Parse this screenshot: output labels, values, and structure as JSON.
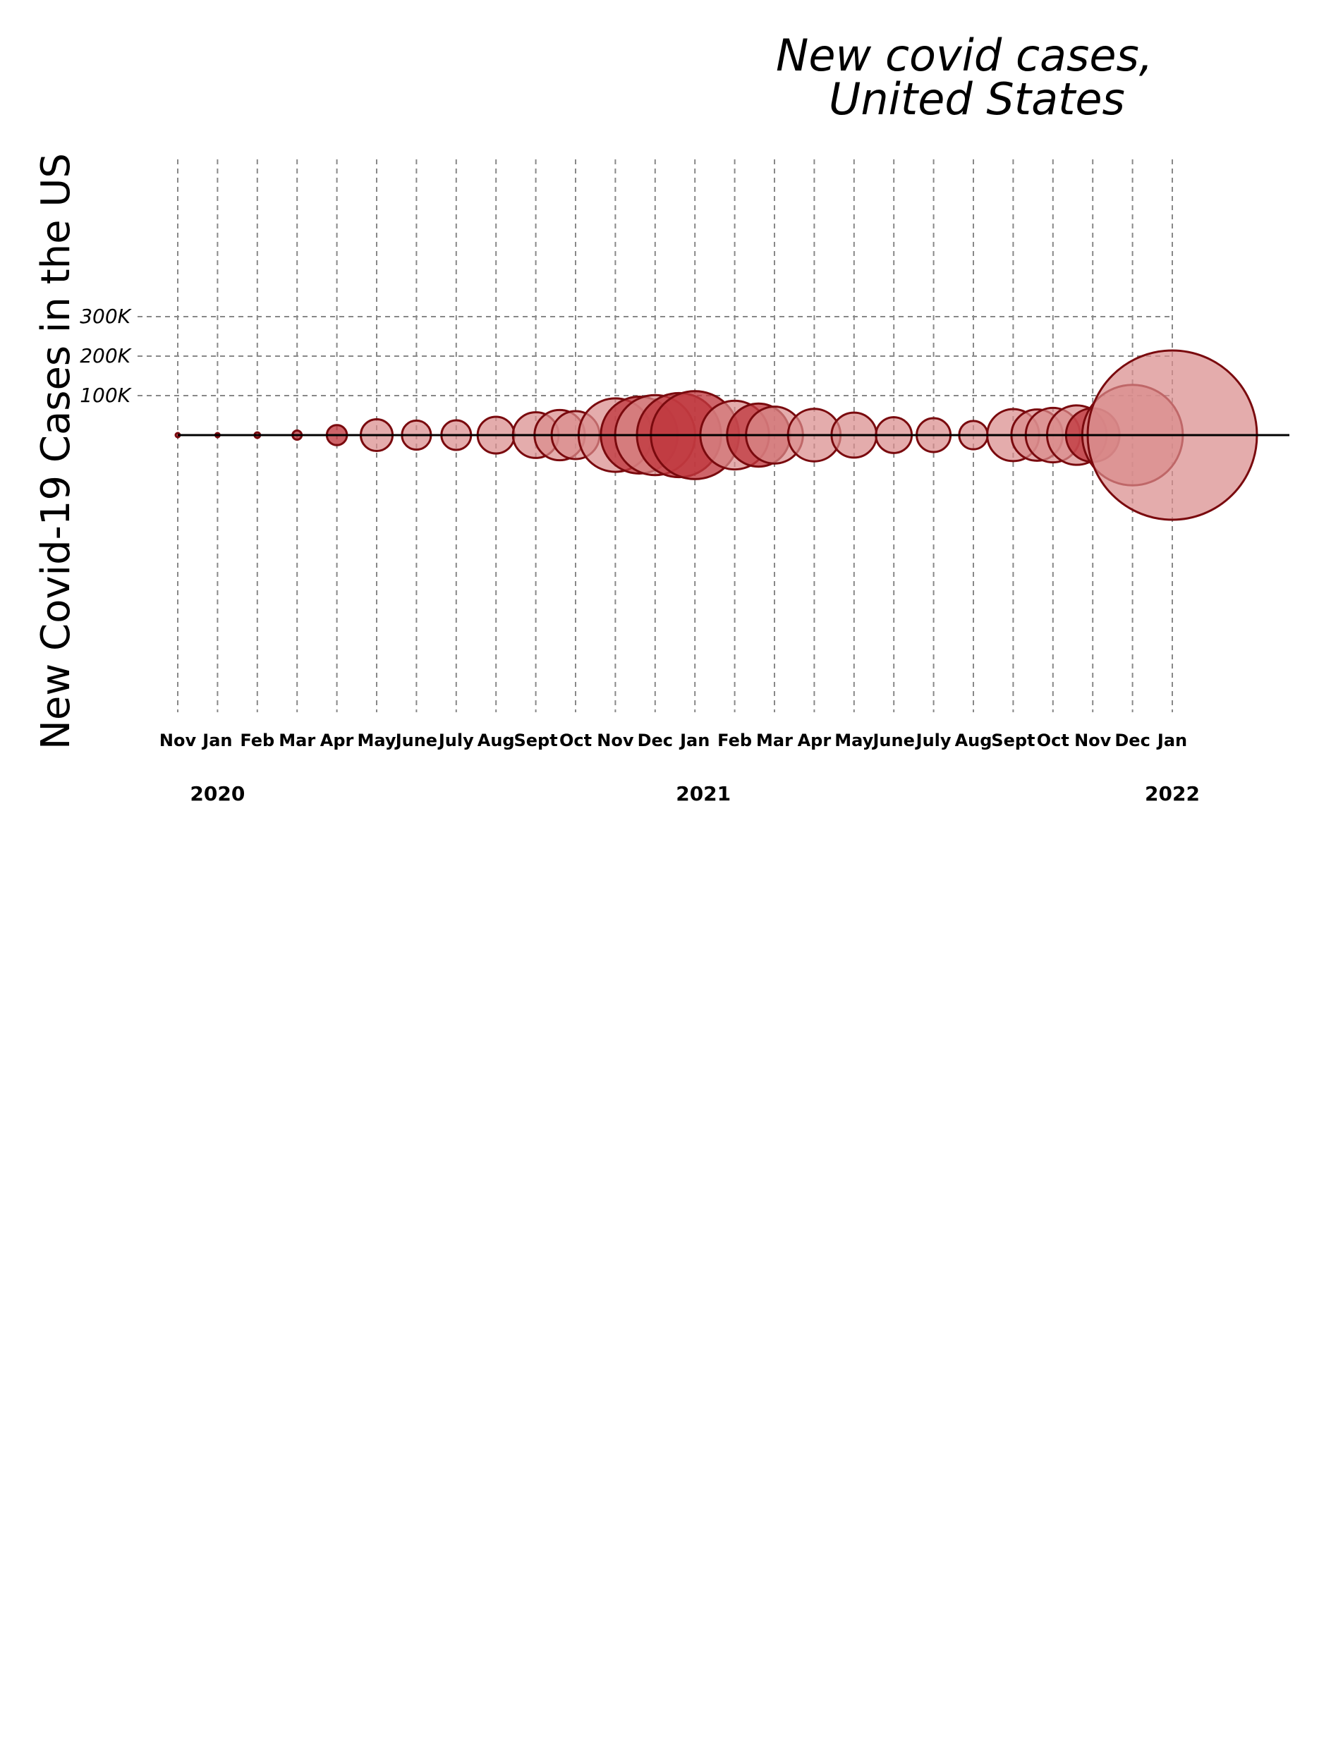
{
  "chart_data": {
    "type": "bubble",
    "title": [
      "New covid cases,",
      "United States"
    ],
    "ylabel": "New Covid-19 Cases in the US",
    "y_ticks": [
      "300K",
      "200K",
      "100K"
    ],
    "y_tick_values": [
      300000,
      200000,
      100000
    ],
    "categories": [
      "Nov",
      "Jan",
      "Feb",
      "Mar",
      "Apr",
      "May",
      "June",
      "July",
      "Aug",
      "Sept",
      "Oct",
      "Nov",
      "Dec",
      "Jan",
      "Feb",
      "Mar",
      "Apr",
      "May",
      "June",
      "July",
      "Aug",
      "Sept",
      "Oct",
      "Nov",
      "Dec",
      "Jan"
    ],
    "years": [
      {
        "label": "2020",
        "category_index": 1
      },
      {
        "label": "2021",
        "category_index": 13
      },
      {
        "label": "2022",
        "category_index": 25
      }
    ],
    "bubbles": [
      {
        "category_index": 0,
        "value": 500,
        "style": "dark"
      },
      {
        "category_index": 1,
        "value": 400,
        "style": "dark"
      },
      {
        "category_index": 2,
        "value": 900,
        "style": "dark"
      },
      {
        "category_index": 3,
        "value": 2500,
        "style": "dark"
      },
      {
        "category_index": 4,
        "value": 12000,
        "style": "dark"
      },
      {
        "category_index": 5,
        "value": 30000,
        "style": "light"
      },
      {
        "category_index": 6,
        "value": 25000,
        "style": "light"
      },
      {
        "category_index": 7,
        "value": 26000,
        "style": "light"
      },
      {
        "category_index": 8,
        "value": 40000,
        "style": "light"
      },
      {
        "category_index": 9,
        "value": 62000,
        "style": "light"
      },
      {
        "category_index": 9.6,
        "value": 75000,
        "style": "light"
      },
      {
        "category_index": 10,
        "value": 68000,
        "style": "light"
      },
      {
        "category_index": 11,
        "value": 160000,
        "style": "light"
      },
      {
        "category_index": 11.6,
        "value": 175000,
        "style": "dark"
      },
      {
        "category_index": 12,
        "value": 190000,
        "style": "light"
      },
      {
        "category_index": 12.6,
        "value": 210000,
        "style": "dark"
      },
      {
        "category_index": 13,
        "value": 230000,
        "style": "dark"
      },
      {
        "category_index": 14,
        "value": 140000,
        "style": "light"
      },
      {
        "category_index": 14.6,
        "value": 118000,
        "style": "dark"
      },
      {
        "category_index": 15,
        "value": 96000,
        "style": "light"
      },
      {
        "category_index": 16,
        "value": 82000,
        "style": "light"
      },
      {
        "category_index": 17,
        "value": 60000,
        "style": "light"
      },
      {
        "category_index": 18,
        "value": 38000,
        "style": "light"
      },
      {
        "category_index": 19,
        "value": 34000,
        "style": "light"
      },
      {
        "category_index": 20,
        "value": 24000,
        "style": "light"
      },
      {
        "category_index": 21,
        "value": 80000,
        "style": "light"
      },
      {
        "category_index": 21.6,
        "value": 78000,
        "style": "light"
      },
      {
        "category_index": 22,
        "value": 88000,
        "style": "light"
      },
      {
        "category_index": 22.6,
        "value": 105000,
        "style": "light"
      },
      {
        "category_index": 23,
        "value": 85000,
        "style": "dark"
      },
      {
        "category_index": 24,
        "value": 300000,
        "style": "light"
      },
      {
        "category_index": 25,
        "value": 850000,
        "style": "light"
      }
    ],
    "grid": true
  },
  "colors": {
    "bubble_light": "#d98c8c",
    "bubble_dark": "#c0393f",
    "bubble_stroke": "#7a0a0e",
    "grid": "#888888",
    "axis": "#000000"
  }
}
